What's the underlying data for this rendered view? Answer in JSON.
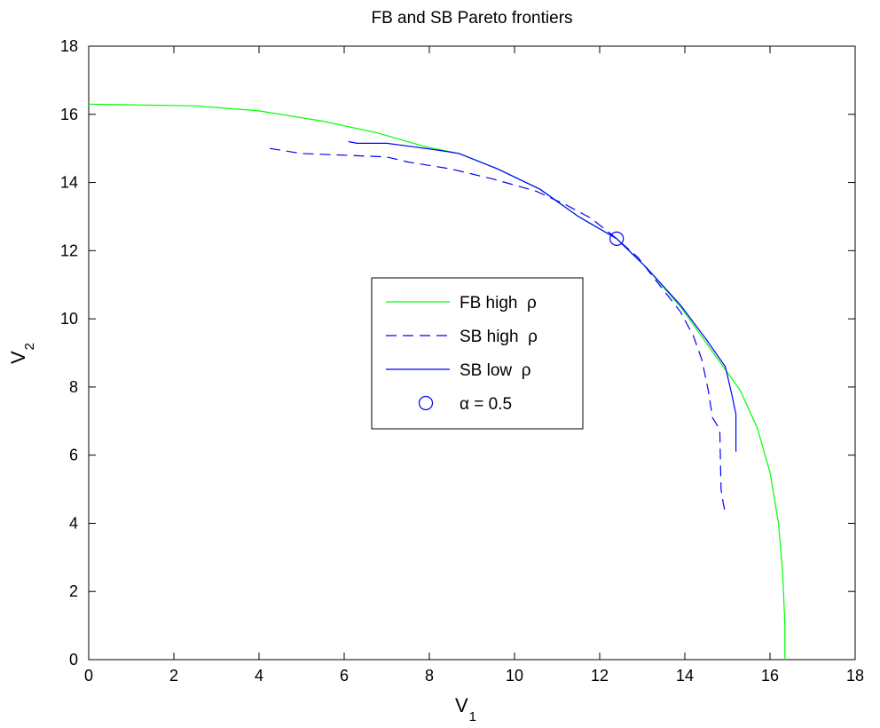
{
  "chart_data": {
    "type": "line",
    "title": "FB and SB Pareto frontiers",
    "xlabel": {
      "main": "V",
      "sub": "1"
    },
    "ylabel": {
      "main": "V",
      "sub": "2"
    },
    "xlim": [
      0,
      18
    ],
    "ylim": [
      0,
      18
    ],
    "xticks": [
      0,
      2,
      4,
      6,
      8,
      10,
      12,
      14,
      16,
      18
    ],
    "yticks": [
      0,
      2,
      4,
      6,
      8,
      10,
      12,
      14,
      16,
      18
    ],
    "grid": false,
    "legend_position": "center",
    "series": [
      {
        "name": "FB high  ρ",
        "color": "#00ff00",
        "style": "solid",
        "points": [
          [
            0,
            16.3
          ],
          [
            2.5,
            16.25
          ],
          [
            4.0,
            16.1
          ],
          [
            5.5,
            15.8
          ],
          [
            6.8,
            15.45
          ],
          [
            7.9,
            15.05
          ],
          [
            8.7,
            14.85
          ],
          [
            9.6,
            14.4
          ],
          [
            10.6,
            13.8
          ],
          [
            11.5,
            13.0
          ],
          [
            12.4,
            12.35
          ],
          [
            13.1,
            11.5
          ],
          [
            13.9,
            10.35
          ],
          [
            14.5,
            9.3
          ],
          [
            14.9,
            8.6
          ],
          [
            15.3,
            7.9
          ],
          [
            15.7,
            6.8
          ],
          [
            16.0,
            5.5
          ],
          [
            16.2,
            4.0
          ],
          [
            16.3,
            2.5
          ],
          [
            16.35,
            1.0
          ],
          [
            16.35,
            0
          ]
        ]
      },
      {
        "name": "SB high  ρ",
        "color": "#0000ff",
        "style": "dashed",
        "points": [
          [
            4.25,
            15.0
          ],
          [
            5.0,
            14.85
          ],
          [
            6.0,
            14.8
          ],
          [
            7.0,
            14.75
          ],
          [
            7.5,
            14.6
          ],
          [
            8.5,
            14.4
          ],
          [
            9.5,
            14.1
          ],
          [
            10.5,
            13.75
          ],
          [
            11.2,
            13.35
          ],
          [
            11.8,
            12.95
          ],
          [
            12.4,
            12.35
          ],
          [
            12.9,
            11.8
          ],
          [
            13.4,
            11.0
          ],
          [
            13.9,
            10.2
          ],
          [
            14.2,
            9.5
          ],
          [
            14.4,
            8.8
          ],
          [
            14.55,
            7.9
          ],
          [
            14.65,
            7.1
          ],
          [
            14.82,
            6.75
          ],
          [
            14.85,
            5.0
          ],
          [
            14.9,
            4.6
          ],
          [
            14.95,
            4.3
          ]
        ]
      },
      {
        "name": "SB low  ρ",
        "color": "#0000ff",
        "style": "solid",
        "points": [
          [
            6.1,
            15.2
          ],
          [
            6.3,
            15.15
          ],
          [
            7.0,
            15.15
          ],
          [
            7.6,
            15.05
          ],
          [
            8.2,
            14.95
          ],
          [
            8.7,
            14.85
          ],
          [
            9.6,
            14.4
          ],
          [
            10.6,
            13.8
          ],
          [
            11.5,
            13.0
          ],
          [
            12.4,
            12.35
          ],
          [
            13.1,
            11.5
          ],
          [
            13.9,
            10.4
          ],
          [
            14.5,
            9.4
          ],
          [
            14.95,
            8.6
          ],
          [
            15.1,
            7.8
          ],
          [
            15.2,
            7.2
          ],
          [
            15.2,
            6.1
          ]
        ]
      },
      {
        "name": "α = 0.5",
        "color": "#0000ff",
        "style": "marker-circle",
        "points": [
          [
            12.4,
            12.35
          ]
        ]
      }
    ]
  }
}
